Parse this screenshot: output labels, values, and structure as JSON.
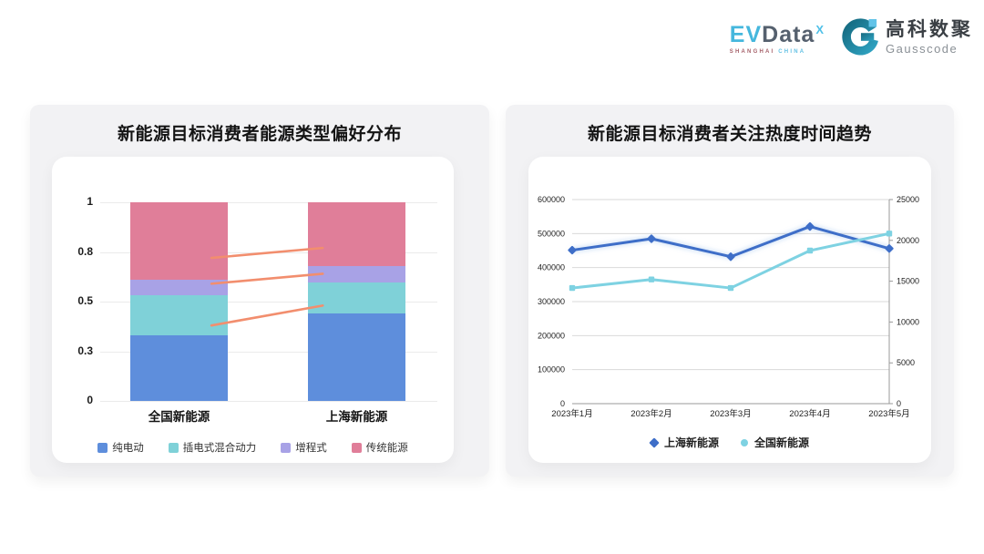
{
  "header": {
    "evdata": {
      "ev": "EV",
      "data": "Data",
      "sup": "X",
      "sub_left": "SHANGHAI",
      "sub_right": "CHINA"
    },
    "gausscode": {
      "cn": "高科数聚",
      "en": "Gausscode"
    }
  },
  "colors": {
    "panel_bg": "#F2F2F4",
    "card_bg": "#FFFFFF",
    "grid": "#EBEBEB",
    "axis": "#999999",
    "bar_blue": "#5E8EDC",
    "bar_teal": "#7FD1D8",
    "bar_purple": "#A8A2E6",
    "bar_pink": "#E07E99",
    "connector_orange": "#F28E6E",
    "line_blue": "#3E6EC8",
    "line_cyan": "#7ED2E2",
    "logo_lightblue": "#45B7DD",
    "logo_slate": "#55606E",
    "gausscode_teal": "#1B7A90"
  },
  "chart_data": [
    {
      "type": "bar",
      "stacked": true,
      "title": "新能源目标消费者能源类型偏好分布",
      "categories": [
        "全国新能源",
        "上海新能源"
      ],
      "series": [
        {
          "name": "纯电动",
          "color": "#5E8EDC",
          "values": [
            0.33,
            0.44
          ]
        },
        {
          "name": "插电式混合动力",
          "color": "#7FD1D8",
          "values": [
            0.2,
            0.155
          ]
        },
        {
          "name": "增程式",
          "color": "#A8A2E6",
          "values": [
            0.08,
            0.085
          ]
        },
        {
          "name": "传统能源",
          "color": "#E07E99",
          "values": [
            0.39,
            0.32
          ]
        }
      ],
      "ylim": [
        0,
        1
      ],
      "yticks": {
        "values": [
          0,
          0.25,
          0.5,
          0.75,
          1
        ],
        "labels": [
          "0",
          "0.3",
          "0.5",
          "0.8",
          "1"
        ]
      },
      "grid": true,
      "legend_position": "bottom",
      "connector_lines": {
        "color": "#F28E6E",
        "segments": [
          {
            "x1": 0.33,
            "y1": 0.72,
            "x2": 0.66,
            "y2": 0.77
          },
          {
            "x1": 0.33,
            "y1": 0.59,
            "x2": 0.66,
            "y2": 0.64
          },
          {
            "x1": 0.33,
            "y1": 0.38,
            "x2": 0.66,
            "y2": 0.48
          }
        ]
      }
    },
    {
      "type": "line",
      "title": "新能源目标消费者关注热度时间趋势",
      "x": [
        "2023年1月",
        "2023年2月",
        "2023年3月",
        "2023年4月",
        "2023年5月"
      ],
      "series": [
        {
          "name": "上海新能源",
          "axis": "right",
          "color": "#3E6EC8",
          "marker": "diamond",
          "values": [
            18800,
            20200,
            18000,
            21700,
            19000
          ]
        },
        {
          "name": "全国新能源",
          "axis": "left",
          "color": "#7ED2E2",
          "marker": "square",
          "values": [
            340000,
            365000,
            340000,
            450000,
            500000
          ]
        }
      ],
      "left_axis": {
        "range": [
          0,
          600000
        ],
        "tick_labels": [
          "0",
          "100000",
          "200000",
          "300000",
          "400000",
          "500000",
          "600000"
        ]
      },
      "right_axis": {
        "range": [
          0,
          25000
        ],
        "tick_labels": [
          "0",
          "5000",
          "10000",
          "15000",
          "20000",
          "25000"
        ]
      },
      "grid": true,
      "legend_position": "bottom"
    }
  ]
}
